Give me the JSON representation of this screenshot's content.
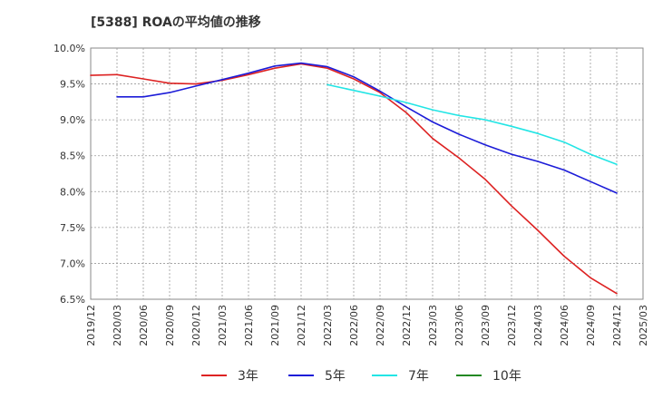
{
  "chart_data": {
    "type": "line",
    "title": "[5388]  ROAの平均値の推移",
    "xlabel": "",
    "ylabel": "",
    "x": [
      "2019/12",
      "2020/03",
      "2020/06",
      "2020/09",
      "2020/12",
      "2021/03",
      "2021/06",
      "2021/09",
      "2021/12",
      "2022/03",
      "2022/06",
      "2022/09",
      "2022/12",
      "2023/03",
      "2023/06",
      "2023/09",
      "2023/12",
      "2024/03",
      "2024/06",
      "2024/09",
      "2024/12",
      "2025/03"
    ],
    "ylim": [
      6.5,
      10.0
    ],
    "yticks": [
      6.5,
      7.0,
      7.5,
      8.0,
      8.5,
      9.0,
      9.5,
      10.0
    ],
    "ytick_labels": [
      "6.5%",
      "7.0%",
      "7.5%",
      "8.0%",
      "8.5%",
      "9.0%",
      "9.5%",
      "10.0%"
    ],
    "grid": true,
    "legend_position": "bottom",
    "series": [
      {
        "name": "3年",
        "color": "#dd2222",
        "values": [
          9.62,
          9.63,
          9.57,
          9.51,
          9.5,
          9.55,
          9.63,
          9.72,
          9.78,
          9.72,
          9.57,
          9.38,
          9.1,
          8.74,
          8.47,
          8.17,
          7.8,
          7.46,
          7.1,
          6.8,
          6.58,
          null
        ]
      },
      {
        "name": "5年",
        "color": "#1c1cd8",
        "values": [
          null,
          9.32,
          9.32,
          9.38,
          9.47,
          9.56,
          9.65,
          9.75,
          9.79,
          9.74,
          9.6,
          9.4,
          9.18,
          8.97,
          8.8,
          8.65,
          8.52,
          8.42,
          8.3,
          8.14,
          7.98,
          null
        ]
      },
      {
        "name": "7年",
        "color": "#22e5e5",
        "values": [
          null,
          null,
          null,
          null,
          null,
          null,
          null,
          null,
          null,
          9.49,
          9.41,
          9.33,
          9.24,
          9.14,
          9.06,
          9.0,
          8.91,
          8.81,
          8.69,
          8.52,
          8.38,
          null
        ]
      },
      {
        "name": "10年",
        "color": "#228822",
        "values": [
          null,
          null,
          null,
          null,
          null,
          null,
          null,
          null,
          null,
          null,
          null,
          null,
          null,
          null,
          null,
          null,
          null,
          null,
          null,
          null,
          null,
          null
        ]
      }
    ]
  }
}
